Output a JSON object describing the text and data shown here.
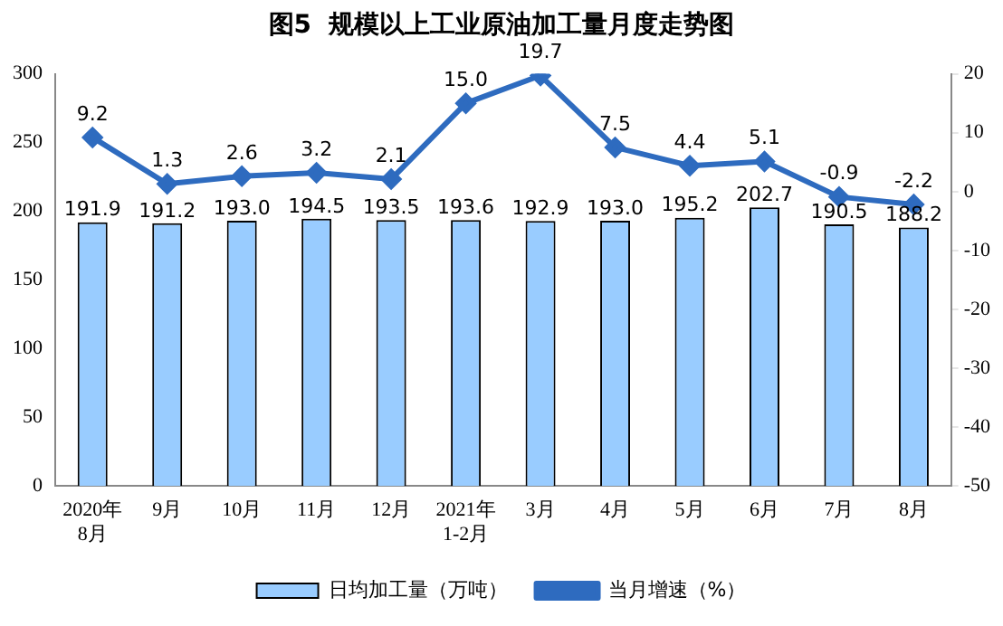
{
  "chart_data": {
    "type": "bar",
    "title": "图5  规模以上工业原油加工量月度走势图",
    "categories": [
      "2020年\n8月",
      "9月",
      "10月",
      "11月",
      "12月",
      "2021年\n1-2月",
      "3月",
      "4月",
      "5月",
      "6月",
      "7月",
      "8月"
    ],
    "series": [
      {
        "name": "日均加工量（万吨）",
        "color": "#99ccff",
        "values": [
          191.9,
          191.2,
          193.0,
          194.5,
          193.5,
          193.6,
          192.9,
          193.0,
          195.2,
          202.7,
          190.5,
          188.2
        ],
        "value_labels": [
          "191.9",
          "191.2",
          "193.0",
          "194.5",
          "193.5",
          "193.6",
          "192.9",
          "193.0",
          "195.2",
          "202.7",
          "190.5",
          "188.2"
        ]
      },
      {
        "name": "当月增速（%）",
        "type": "line",
        "axis": "y2",
        "color": "#2e6bbf",
        "marker": "diamond",
        "values": [
          9.2,
          1.3,
          2.6,
          3.2,
          2.1,
          15.0,
          19.7,
          7.5,
          4.4,
          5.1,
          -0.9,
          -2.2
        ],
        "value_labels": [
          "9.2",
          "1.3",
          "2.6",
          "3.2",
          "2.1",
          "15.0",
          "19.7",
          "7.5",
          "4.4",
          "5.1",
          "-0.9",
          "-2.2"
        ]
      }
    ],
    "ylim": [
      0,
      300
    ],
    "yticks": [
      0,
      50,
      100,
      150,
      200,
      250,
      300
    ],
    "y2lim": [
      -50,
      20
    ],
    "y2ticks": [
      -50,
      -40,
      -30,
      -20,
      -10,
      0,
      10,
      20
    ],
    "grid": false,
    "legend": "bottom"
  }
}
